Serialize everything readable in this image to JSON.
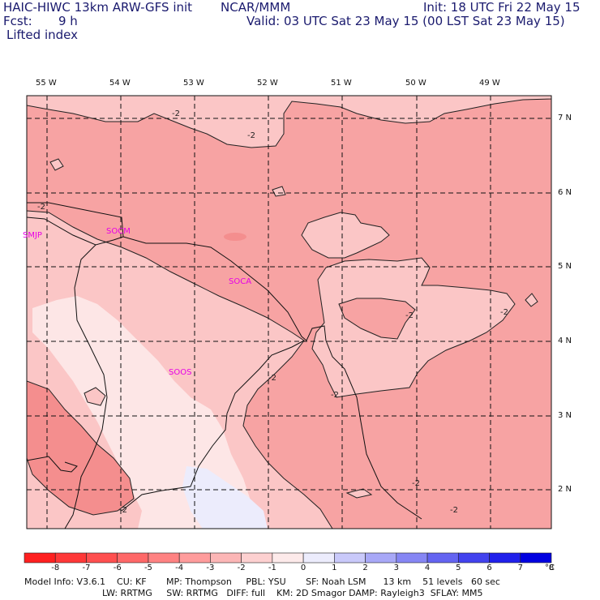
{
  "header": {
    "model": "HAIC-HIWC 13km ARW-GFS init",
    "center": "NCAR/MMM",
    "init": "Init: 18 UTC Fri 22 May 15",
    "fcst_label": "Fcst:",
    "fcst_value": "9 h",
    "valid": "Valid: 03 UTC Sat 23 May 15 (00 LST Sat 23 May 15)",
    "field": "Lifted index"
  },
  "map": {
    "lon_labels": [
      "55 W",
      "54 W",
      "53 W",
      "52 W",
      "51 W",
      "50 W",
      "49 W"
    ],
    "lat_labels": [
      "7 N",
      "6 N",
      "5 N",
      "4 N",
      "3 N",
      "2 N"
    ],
    "stations": [
      "SMJP",
      "SOCM",
      "SOCA",
      "SOOS"
    ],
    "contour_labels": [
      "-2",
      "-2",
      "-2",
      "-2",
      "-2",
      "-2",
      "-2",
      "-2",
      "-2",
      "-2"
    ],
    "colors": {
      "lt_m3": "#f7a3a3",
      "lt_m2": "#fbc6c6",
      "lt_m1": "#fde6e6",
      "lt_0": "#ececfc",
      "station": "#e600e6"
    }
  },
  "colorbar": {
    "labels": [
      "-8",
      "-7",
      "-6",
      "-5",
      "-4",
      "-3",
      "-2",
      "-1",
      "0",
      "1",
      "2",
      "3",
      "4",
      "5",
      "6",
      "7",
      "8",
      "°C"
    ],
    "colors": [
      "#ff2020",
      "#ff3838",
      "#ff4f4f",
      "#ff6868",
      "#ff8282",
      "#ff9c9c",
      "#fcb6b6",
      "#fdd0d0",
      "#fdeaea",
      "#ececfc",
      "#c9c9fa",
      "#a8a8f7",
      "#8686f4",
      "#6464f1",
      "#4242ee",
      "#2020eb",
      "#0000e0"
    ]
  },
  "footer": {
    "line1": "Model Info: V3.6.1    CU: KF       MP: Thompson     PBL: YSU       SF: Noah LSM      13 km    51 levels   60 sec",
    "line2": "LW: RRTMG     SW: RRTMG   DIFF: full    KM: 2D Smagor DAMP: Rayleigh3  SFLAY: MM5"
  }
}
